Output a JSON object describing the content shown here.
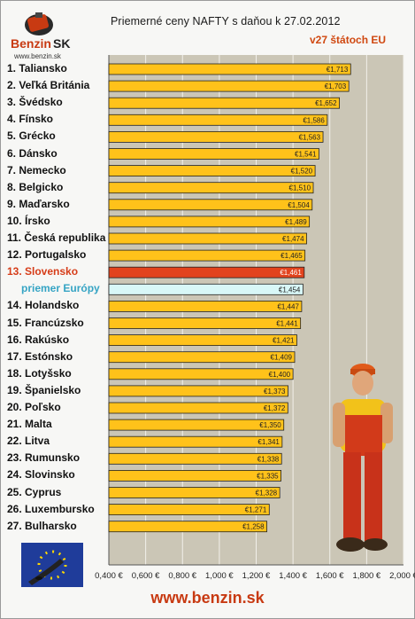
{
  "logo": {
    "brand": "Benzin",
    "suffix": "SK",
    "url": "www.benzin.sk"
  },
  "chart_data": {
    "type": "bar",
    "orientation": "horizontal",
    "title": "Priemerné ceny NAFTY s daňou k 27.02.2012",
    "subtitle": "v27 štátoch EU",
    "categories": [
      "1. Taliansko",
      "2. Veľká Británia",
      "3. Švédsko",
      "4. Fínsko",
      "5. Grécko",
      "6. Dánsko",
      "7. Nemecko",
      "8. Belgicko",
      "9. Maďarsko",
      "10. Írsko",
      "11. Česká republika",
      "12. Portugalsko",
      "13. Slovensko",
      "priemer Európy",
      "14. Holandsko",
      "15. Francúzsko",
      "16. Rakúsko",
      "17. Estónsko",
      "18. Lotyšsko",
      "19. Španielsko",
      "20. Poľsko",
      "21. Malta",
      "22. Litva",
      "23. Rumunsko",
      "24. Slovinsko",
      "25. Cyprus",
      "26. Luxembursko",
      "27. Bulharsko"
    ],
    "values": [
      1.713,
      1.703,
      1.652,
      1.586,
      1.563,
      1.541,
      1.52,
      1.51,
      1.504,
      1.489,
      1.474,
      1.465,
      1.461,
      1.454,
      1.447,
      1.441,
      1.421,
      1.409,
      1.4,
      1.373,
      1.372,
      1.35,
      1.341,
      1.338,
      1.335,
      1.328,
      1.271,
      1.258
    ],
    "value_labels": [
      "€1,713",
      "€1,703",
      "€1,652",
      "€1,586",
      "€1,563",
      "€1,541",
      "€1,520",
      "€1,510",
      "€1,504",
      "€1,489",
      "€1,474",
      "€1,465",
      "€1,461",
      "€1,454",
      "€1,447",
      "€1,441",
      "€1,421",
      "€1,409",
      "€1,400",
      "€1,373",
      "€1,372",
      "€1,350",
      "€1,341",
      "€1,338",
      "€1,335",
      "€1,328",
      "€1,271",
      "€1,258"
    ],
    "highlight_index": 12,
    "average_index": 13,
    "xlim": [
      0.4,
      2.0
    ],
    "x_ticks": [
      "0,400 €",
      "0,600 €",
      "0,800 €",
      "1,000 €",
      "1,200 €",
      "1,400 €",
      "1,600 €",
      "1,800 €",
      "2,000 €"
    ],
    "grid": true,
    "colors": {
      "bar": "#ffc21a",
      "highlight": "#e2431d",
      "average": "#d8f7f7",
      "plot_bg": "#cbc6b6",
      "grid": "#f2f0ea"
    }
  },
  "footer": {
    "url": "www.benzin.sk"
  }
}
